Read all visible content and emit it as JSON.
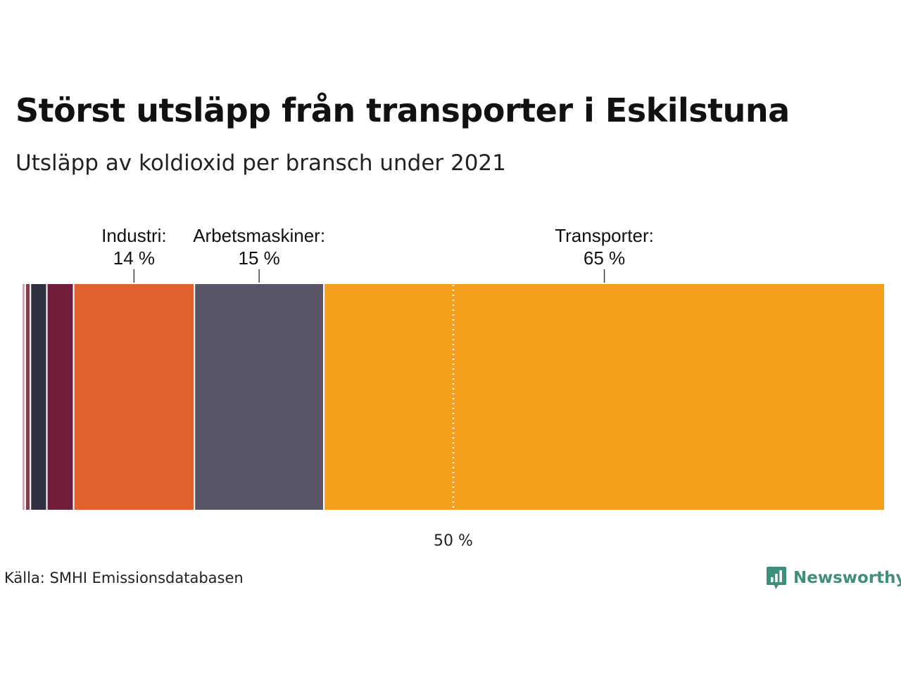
{
  "title": "Störst utsläpp från transporter i Eskilstuna",
  "subtitle": "Utsläpp av koldioxid per bransch under 2021",
  "source": "Källa: SMHI Emissionsdatabasen",
  "brand": "Newsworthy",
  "colors": {
    "brand": "#3f8f7c",
    "marker_line": "#ffffff",
    "label_line": "#333333"
  },
  "chart_data": {
    "type": "bar",
    "stacked": true,
    "orientation": "horizontal",
    "unit": "%",
    "xlim": [
      0,
      100
    ],
    "series": [
      {
        "name": "",
        "value": 0.4,
        "color": "#c9a7b2"
      },
      {
        "name": "",
        "value": 0.6,
        "color": "#8a3a4c"
      },
      {
        "name": "",
        "value": 1.9,
        "color": "#2f3041"
      },
      {
        "name": "",
        "value": 3.1,
        "color": "#721d3c"
      },
      {
        "name": "Industri:",
        "value": 14,
        "value_label": "14 %",
        "color": "#e0602f"
      },
      {
        "name": "Arbetsmaskiner:",
        "value": 15,
        "value_label": "15 %",
        "color": "#595566"
      },
      {
        "name": "Transporter:",
        "value": 65,
        "value_label": "65 %",
        "color": "#f59f1c"
      }
    ],
    "reference_line": {
      "value": 50,
      "label": "50 %",
      "style": "dotted"
    }
  }
}
